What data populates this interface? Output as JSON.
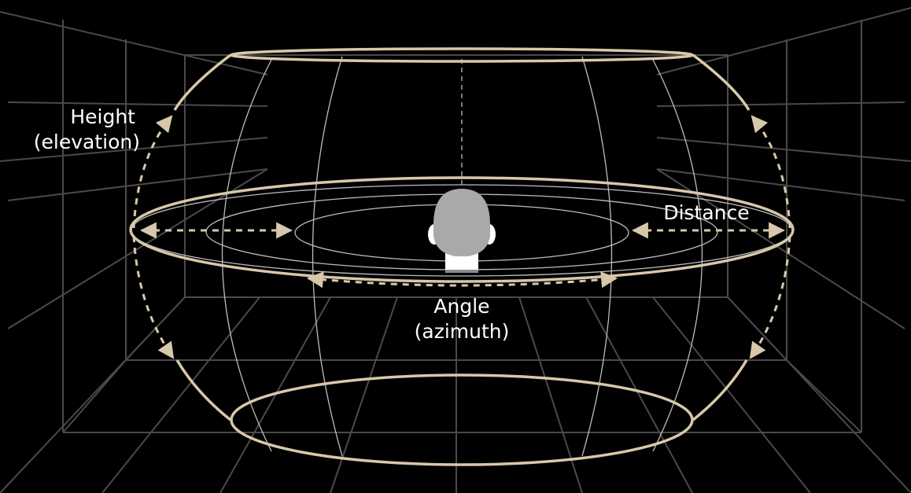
{
  "labels": {
    "height_line1": "Height",
    "height_line2": "(elevation)",
    "distance": "Distance",
    "angle_line1": "Angle",
    "angle_line2": "(azimuth)"
  },
  "colors": {
    "background": "#000000",
    "room_grid": "#4a4a4a",
    "sphere_lines": "#bdbdbd",
    "accent": "#d8c8aa",
    "head": "#a9a9a9",
    "text": "#ffffff"
  }
}
